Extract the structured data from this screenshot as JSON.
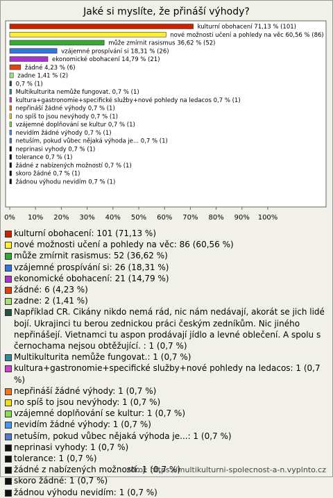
{
  "chart_data": {
    "type": "bar",
    "orientation": "horizontal",
    "title": "Jaké si myslíte, že přináší výhody?",
    "categories": [
      "kulturní obohacení",
      "nové možnosti učení a pohledy na věc",
      "může zmírnit rasismus",
      "vzájemné prospívání si",
      "ekonomické obohacení",
      "žádné",
      "zadne",
      null,
      "Multikulturita nemůže fungovat.",
      "kultura+gastronomie+specifické služby+nové pohledy na ledacos",
      "nepřináší žádné výhody",
      "no spíš to jsou nevýhody",
      "vzájemné doplňování se kultur",
      "nevidím žádné výhody",
      "netuším, pokud vůbec nějaká výhoda je...",
      "neprinasi vyhody",
      "tolerance",
      "žádné z nabízených možností",
      "skoro žádné",
      "žádnou výhodu nevidím"
    ],
    "values": [
      71.13,
      60.56,
      36.62,
      18.31,
      14.79,
      4.23,
      1.41,
      0.7,
      0.7,
      0.7,
      0.7,
      0.7,
      0.7,
      0.7,
      0.7,
      0.7,
      0.7,
      0.7,
      0.7,
      0.7
    ],
    "value_labels": [
      "71,13 % (101)",
      "60,56 % (86)",
      "36,62 % (52)",
      "18,31 % (26)",
      "14,79 % (21)",
      "4,23 % (6)",
      "1,41 % (2)",
      "0,7 % (1)",
      "0,7 % (1)",
      "0,7 % (1)",
      "0,7 % (1)",
      "0,7 % (1)",
      "0,7 % (1)",
      "0,7 % (1)",
      "0,7 % (1)",
      "0,7 % (1)",
      "0,7 % (1)",
      "0,7 % (1)",
      "0,7 % (1)",
      "0,7 % (1)"
    ],
    "colors": [
      "#cc2200",
      "#ffee33",
      "#33aa33",
      "#3377dd",
      "#aa33cc",
      "#dd4411",
      "#aade77",
      "#225544",
      "#338899",
      "#cc44cc",
      "#ee7722",
      "#eedd22",
      "#88dd55",
      "#4499ee",
      "#5577cc",
      "#111111",
      "#111111",
      "#111111",
      "#111111",
      "#111111"
    ],
    "legend_labels": [
      "kulturní obohacení: 101 (71,13 %)",
      "nové možnosti učení a pohledy na věc: 86 (60,56 %)",
      "může zmírnit rasismus: 52 (36,62 %)",
      "vzájemné prospívání si: 26 (18,31 %)",
      "ekonomické obohacení: 21 (14,79 %)",
      "žádné: 6 (4,23 %)",
      "zadne: 2 (1,41 %)",
      "Například CR. Cikány nikdo nemá rád, nic nám nedávají, akorát se jich lidé bojí. Ukrajinci tu berou zednickou práci českým zedníkům. Nic jiného nepřinášejí. Vietnamci tu aspon prodávají jídlo a levné oblečení. A spolu s černochama nejsou obtěžující. : 1 (0,7 %)",
      "Multikulturita nemůže fungovat.: 1 (0,7 %)",
      "kultura+gastronomie+specifické služby+nové pohledy na ledacos: 1 (0,7 %)",
      "nepřináší žádné výhody: 1 (0,7 %)",
      "no spíš to jsou nevýhody: 1 (0,7 %)",
      "vzájemné doplňování se kultur: 1 (0,7 %)",
      "nevidím žádné výhody: 1 (0,7 %)",
      "netuším, pokud vůbec nějaká výhoda je...: 1 (0,7 %)",
      "neprinasi vyhody: 1 (0,7 %)",
      "tolerance: 1 (0,7 %)",
      "žádné z nabízených možností: 1 (0,7 %)",
      "skoro žádné: 1 (0,7 %)",
      "žádnou výhodu nevidím: 1 (0,7 %)"
    ],
    "xlim": [
      0,
      100
    ],
    "xticks": [
      {
        "value": 0,
        "label": "0%"
      },
      {
        "value": 10,
        "label": "10%"
      },
      {
        "value": 20,
        "label": "20%"
      },
      {
        "value": 30,
        "label": "30%"
      },
      {
        "value": 40,
        "label": "40%"
      },
      {
        "value": 50,
        "label": "50%"
      },
      {
        "value": 60,
        "label": "60%"
      },
      {
        "value": 70,
        "label": "70%"
      },
      {
        "value": 80,
        "label": "80%"
      },
      {
        "value": 90,
        "label": "90%"
      },
      {
        "value": 100,
        "label": "100%"
      }
    ]
  },
  "source": "zdroj: https://multikulturni-spolecnost-a-n.vyplnto.cz"
}
